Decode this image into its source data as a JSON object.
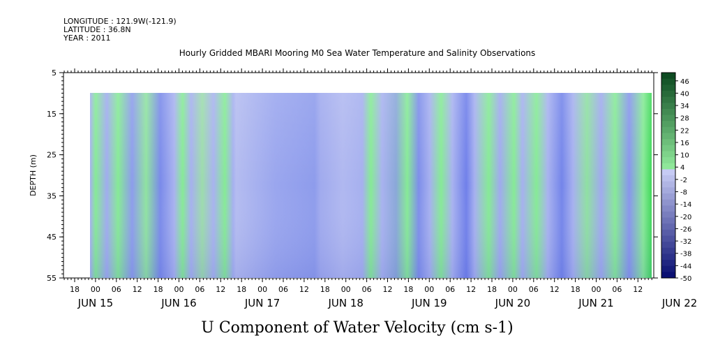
{
  "header": {
    "longitude": "LONGITUDE : 121.9W(-121.9)",
    "latitude": "LATITUDE : 36.8N",
    "year": "YEAR : 2011"
  },
  "chart_data": {
    "type": "heatmap",
    "title": "Hourly Gridded MBARI Mooring M0 Sea Water Temperature and Salinity Observations",
    "xlabel": "U Component of Water Velocity (cm s-1)",
    "ylabel": "DEPTH (m)",
    "y_ticks": [
      "5",
      "15",
      "25",
      "35",
      "45",
      "55"
    ],
    "ylim": [
      5,
      55
    ],
    "x_hour_ticks": [
      "18",
      "00",
      "06",
      "12",
      "18",
      "00",
      "06",
      "12",
      "18",
      "00",
      "06",
      "12",
      "18",
      "00",
      "06",
      "12",
      "18",
      "00",
      "06",
      "12",
      "18",
      "00",
      "06",
      "12",
      "18",
      "00",
      "06",
      "12"
    ],
    "x_date_labels": [
      "JUN 15",
      "JUN 16",
      "JUN 17",
      "JUN 18",
      "JUN 19",
      "JUN 20",
      "JUN 21",
      "JUN 22"
    ],
    "colorbar": {
      "labels": [
        "46",
        "40",
        "34",
        "28",
        "22",
        "16",
        "10",
        "4",
        "-2",
        "-8",
        "-14",
        "-20",
        "-26",
        "-32",
        "-38",
        "-44",
        "-50"
      ],
      "range": [
        -50,
        50
      ]
    },
    "colors": {
      "green": "#86ea96",
      "light_blue": "#b2baf0",
      "mid_blue": "#9aa6ee",
      "dark_blue": "#6f80ea"
    }
  }
}
